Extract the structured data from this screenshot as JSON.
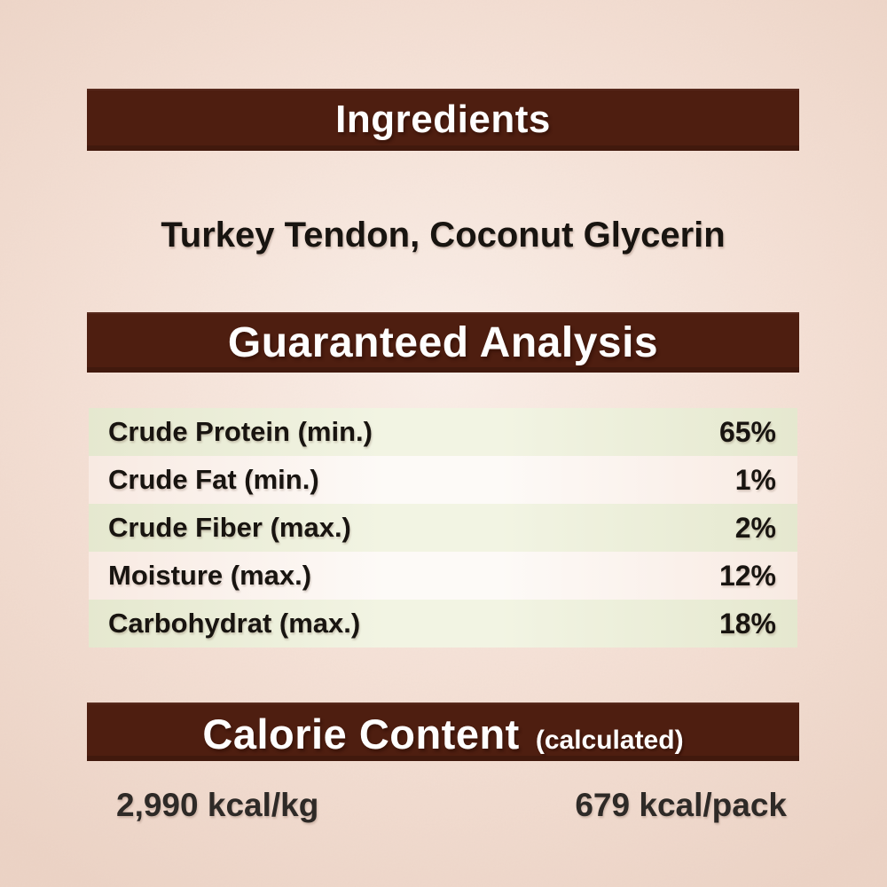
{
  "colors": {
    "bar_brown": "#4e1e10",
    "bar_text": "#fefefe",
    "page_center": "#faeee7",
    "page_mid": "#f4dfd4",
    "page_edge": "#ecd3c5",
    "row_green": "#e5e8cf",
    "row_green_light": "#f2f4e3",
    "row_pink": "#f8eae2",
    "row_pink_light": "#fdfaf7",
    "text_dark": "#181410",
    "calorie_text": "#2e2a27"
  },
  "sections": {
    "ingredients": {
      "title": "Ingredients",
      "content": "Turkey Tendon, Coconut Glycerin"
    },
    "guaranteed_analysis": {
      "title": "Guaranteed Analysis",
      "rows": [
        {
          "label": "Crude Protein (min.)",
          "value": "65%"
        },
        {
          "label": "Crude Fat (min.)",
          "value": "1%"
        },
        {
          "label": "Crude Fiber (max.)",
          "value": "2%"
        },
        {
          "label": "Moisture (max.)",
          "value": "12%"
        },
        {
          "label": "Carbohydrat (max.)",
          "value": "18%"
        }
      ]
    },
    "calorie_content": {
      "title": "Calorie Content",
      "subtitle": "(calculated)",
      "per_kg": "2,990 kcal/kg",
      "per_pack": "679 kcal/pack"
    }
  }
}
